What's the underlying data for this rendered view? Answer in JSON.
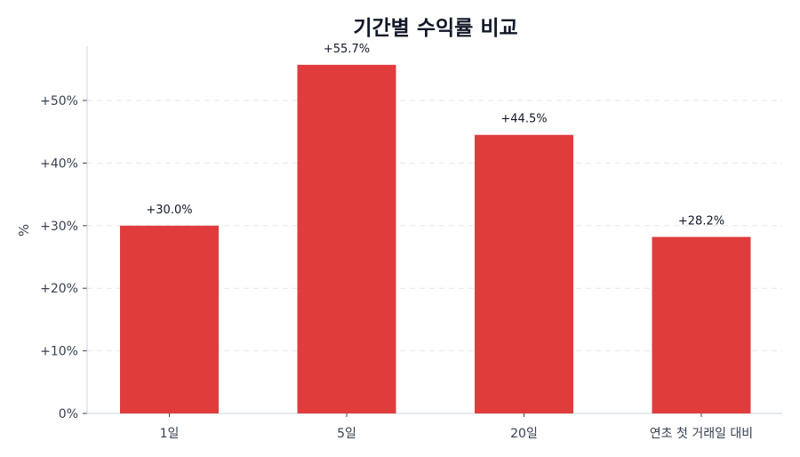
{
  "chart_data": {
    "type": "bar",
    "title": "기간별 수익률 비교",
    "xlabel": "",
    "ylabel": "%",
    "categories": [
      "1일",
      "5일",
      "20일",
      "연초 첫 거래일 대비"
    ],
    "values": [
      30.0,
      55.7,
      44.5,
      28.2
    ],
    "value_labels": [
      "+30.0%",
      "+55.7%",
      "+44.5%",
      "+28.2%"
    ],
    "ylim": [
      0,
      58
    ],
    "yticks": [
      0,
      10,
      20,
      30,
      40,
      50
    ],
    "ytick_labels": [
      "0%",
      "+10%",
      "+20%",
      "+30%",
      "+40%",
      "+50%"
    ],
    "grid": "horizontal dashed",
    "legend": "none",
    "colors": {
      "bar": "#e03c3c",
      "grid": "#e5e7eb",
      "axis": "#cbd5e1",
      "text": "#374151",
      "title": "#111827"
    }
  }
}
